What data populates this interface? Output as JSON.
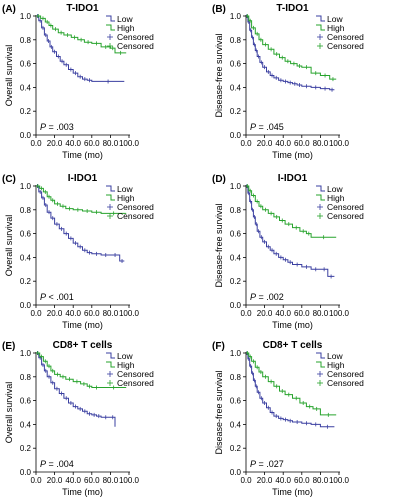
{
  "colors": {
    "low": "#3a3fa0",
    "high": "#27a32c",
    "axis": "#000000"
  },
  "chart_data": [
    {
      "type": "line",
      "letter": "(A)",
      "title": "T-IDO1",
      "xlabel": "Time (mo)",
      "ylabel": "Overall survival",
      "xlim": [
        0,
        100
      ],
      "ylim": [
        0,
        1.0
      ],
      "xticks": [
        "0.0",
        "20.0",
        "40.0",
        "60.0",
        "80.0",
        "100.0"
      ],
      "yticks": [
        "0.0",
        "0.2",
        "0.4",
        "0.6",
        "0.8",
        "1.0"
      ],
      "p_prefix": "P",
      "p_value": "= .003",
      "legend": [
        "Low",
        "High",
        "Censored",
        "Censored"
      ],
      "series": [
        {
          "name": "Low",
          "x": [
            0,
            3,
            6,
            9,
            12,
            15,
            18,
            22,
            26,
            30,
            35,
            40,
            45,
            50,
            55,
            60,
            95
          ],
          "y": [
            1.0,
            0.96,
            0.9,
            0.84,
            0.79,
            0.74,
            0.7,
            0.66,
            0.62,
            0.59,
            0.55,
            0.52,
            0.49,
            0.47,
            0.46,
            0.45,
            0.45
          ]
        },
        {
          "name": "High",
          "x": [
            0,
            5,
            10,
            14,
            18,
            24,
            30,
            38,
            45,
            52,
            60,
            70,
            80,
            85,
            97
          ],
          "y": [
            1.0,
            0.98,
            0.95,
            0.92,
            0.89,
            0.86,
            0.84,
            0.82,
            0.8,
            0.78,
            0.77,
            0.74,
            0.73,
            0.69,
            0.69
          ]
        }
      ]
    },
    {
      "type": "line",
      "letter": "(B)",
      "title": "T-IDO1",
      "xlabel": "Time (mo)",
      "ylabel": "Disease-free survival",
      "xlim": [
        0,
        100
      ],
      "ylim": [
        0,
        1.0
      ],
      "xticks": [
        "0.0",
        "20.0",
        "40.0",
        "60.0",
        "80.0",
        "100.0"
      ],
      "yticks": [
        "0.0",
        "0.2",
        "0.4",
        "0.6",
        "0.8",
        "1.0"
      ],
      "p_prefix": "P",
      "p_value": "= .045",
      "legend": [
        "Low",
        "High",
        "Censored",
        "Censored"
      ],
      "series": [
        {
          "name": "Low",
          "x": [
            0,
            2,
            4,
            6,
            8,
            10,
            12,
            15,
            18,
            22,
            26,
            30,
            35,
            40,
            45,
            50,
            55,
            60,
            70,
            80,
            90,
            95
          ],
          "y": [
            1.0,
            0.95,
            0.88,
            0.82,
            0.76,
            0.71,
            0.66,
            0.61,
            0.57,
            0.53,
            0.5,
            0.48,
            0.46,
            0.45,
            0.44,
            0.43,
            0.42,
            0.41,
            0.4,
            0.39,
            0.38,
            0.38
          ]
        },
        {
          "name": "High",
          "x": [
            0,
            3,
            6,
            10,
            14,
            18,
            24,
            30,
            36,
            42,
            48,
            55,
            60,
            70,
            80,
            90,
            97
          ],
          "y": [
            1.0,
            0.96,
            0.9,
            0.85,
            0.8,
            0.76,
            0.72,
            0.68,
            0.65,
            0.62,
            0.6,
            0.58,
            0.57,
            0.52,
            0.5,
            0.47,
            0.47
          ]
        }
      ]
    },
    {
      "type": "line",
      "letter": "(C)",
      "title": "I-IDO1",
      "xlabel": "Time (mo)",
      "ylabel": "Overall survival",
      "xlim": [
        0,
        100
      ],
      "ylim": [
        0,
        1.0
      ],
      "xticks": [
        "0.0",
        "20.0",
        "40.0",
        "60.0",
        "80.0",
        "100.0"
      ],
      "yticks": [
        "0.0",
        "0.2",
        "0.4",
        "0.6",
        "0.8",
        "1.0"
      ],
      "p_prefix": "P",
      "p_value": "< .001",
      "legend": [
        "Low",
        "High",
        "Censored",
        "Censored"
      ],
      "series": [
        {
          "name": "Low",
          "x": [
            0,
            3,
            6,
            9,
            12,
            16,
            20,
            25,
            30,
            35,
            40,
            45,
            50,
            55,
            60,
            70,
            80,
            90,
            95
          ],
          "y": [
            1.0,
            0.95,
            0.9,
            0.84,
            0.78,
            0.73,
            0.68,
            0.64,
            0.6,
            0.56,
            0.52,
            0.49,
            0.46,
            0.44,
            0.43,
            0.42,
            0.42,
            0.37,
            0.37
          ]
        },
        {
          "name": "High",
          "x": [
            0,
            4,
            8,
            12,
            16,
            20,
            26,
            32,
            40,
            50,
            60,
            70,
            97
          ],
          "y": [
            1.0,
            0.98,
            0.95,
            0.91,
            0.88,
            0.85,
            0.83,
            0.81,
            0.8,
            0.79,
            0.78,
            0.77,
            0.77
          ]
        }
      ]
    },
    {
      "type": "line",
      "letter": "(D)",
      "title": "I-IDO1",
      "xlabel": "Time (mo)",
      "ylabel": "Disease-free survival",
      "xlim": [
        0,
        100
      ],
      "ylim": [
        0,
        1.0
      ],
      "xticks": [
        "0.0",
        "20.0",
        "40.0",
        "60.0",
        "80.0",
        "100.0"
      ],
      "yticks": [
        "0.0",
        "0.2",
        "0.4",
        "0.6",
        "0.8",
        "1.0"
      ],
      "p_prefix": "P",
      "p_value": "= .002",
      "legend": [
        "Low",
        "High",
        "Censored",
        "Censored"
      ],
      "series": [
        {
          "name": "Low",
          "x": [
            0,
            2,
            4,
            6,
            8,
            10,
            12,
            15,
            18,
            22,
            26,
            30,
            35,
            40,
            45,
            50,
            60,
            70,
            80,
            88,
            95
          ],
          "y": [
            1.0,
            0.94,
            0.87,
            0.8,
            0.74,
            0.68,
            0.62,
            0.57,
            0.53,
            0.49,
            0.46,
            0.43,
            0.4,
            0.38,
            0.36,
            0.34,
            0.32,
            0.3,
            0.3,
            0.24,
            0.24
          ]
        },
        {
          "name": "High",
          "x": [
            0,
            3,
            6,
            10,
            14,
            18,
            24,
            30,
            36,
            42,
            50,
            58,
            65,
            70,
            97
          ],
          "y": [
            1.0,
            0.96,
            0.92,
            0.87,
            0.83,
            0.8,
            0.77,
            0.74,
            0.71,
            0.68,
            0.65,
            0.62,
            0.6,
            0.57,
            0.57
          ]
        }
      ]
    },
    {
      "type": "line",
      "letter": "(E)",
      "title": "CD8+ T cells",
      "xlabel": "Time (mo)",
      "ylabel": "Overall survival",
      "xlim": [
        0,
        100
      ],
      "ylim": [
        0,
        1.0
      ],
      "xticks": [
        "0.0",
        "20.0",
        "40.0",
        "60.0",
        "80.0",
        "100.0"
      ],
      "yticks": [
        "0.0",
        "0.2",
        "0.4",
        "0.6",
        "0.8",
        "1.0"
      ],
      "p_prefix": "P",
      "p_value": "= .004",
      "legend": [
        "Low",
        "High",
        "Censored",
        "Censored"
      ],
      "series": [
        {
          "name": "Low",
          "x": [
            0,
            3,
            6,
            9,
            12,
            16,
            20,
            25,
            30,
            35,
            40,
            45,
            50,
            55,
            60,
            65,
            70,
            80,
            85
          ],
          "y": [
            1.0,
            0.96,
            0.9,
            0.85,
            0.8,
            0.75,
            0.7,
            0.66,
            0.62,
            0.58,
            0.55,
            0.53,
            0.51,
            0.49,
            0.48,
            0.47,
            0.46,
            0.46,
            0.38
          ]
        },
        {
          "name": "High",
          "x": [
            0,
            4,
            8,
            12,
            16,
            20,
            26,
            32,
            40,
            48,
            55,
            60,
            70,
            97
          ],
          "y": [
            1.0,
            0.97,
            0.93,
            0.89,
            0.85,
            0.82,
            0.8,
            0.78,
            0.76,
            0.74,
            0.72,
            0.71,
            0.71,
            0.71
          ]
        }
      ]
    },
    {
      "type": "line",
      "letter": "(F)",
      "title": "CD8+ T cells",
      "xlabel": "Time (mo)",
      "ylabel": "Disease-free survival",
      "xlim": [
        0,
        100
      ],
      "ylim": [
        0,
        1.0
      ],
      "xticks": [
        "0.0",
        "20.0",
        "40.0",
        "60.0",
        "80.0",
        "100.0"
      ],
      "yticks": [
        "0.0",
        "0.2",
        "0.4",
        "0.6",
        "0.8",
        "1.0"
      ],
      "p_prefix": "P",
      "p_value": "= .027",
      "legend": [
        "Low",
        "High",
        "Censored",
        "Censored"
      ],
      "series": [
        {
          "name": "Low",
          "x": [
            0,
            2,
            4,
            6,
            8,
            10,
            12,
            15,
            18,
            22,
            26,
            30,
            35,
            40,
            45,
            50,
            60,
            70,
            80,
            95
          ],
          "y": [
            1.0,
            0.95,
            0.89,
            0.83,
            0.77,
            0.72,
            0.67,
            0.62,
            0.58,
            0.54,
            0.5,
            0.47,
            0.45,
            0.44,
            0.43,
            0.42,
            0.41,
            0.4,
            0.38,
            0.38
          ]
        },
        {
          "name": "High",
          "x": [
            0,
            3,
            6,
            10,
            14,
            18,
            24,
            30,
            36,
            42,
            50,
            58,
            65,
            72,
            80,
            97
          ],
          "y": [
            1.0,
            0.97,
            0.93,
            0.88,
            0.84,
            0.8,
            0.76,
            0.72,
            0.68,
            0.65,
            0.62,
            0.58,
            0.55,
            0.53,
            0.48,
            0.48
          ]
        }
      ]
    }
  ]
}
